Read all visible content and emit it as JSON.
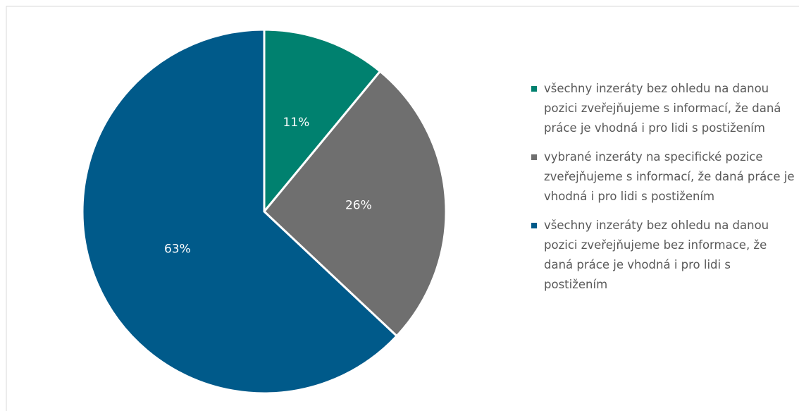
{
  "chart_data": {
    "type": "pie",
    "categories": [
      "všechny inzeráty bez ohledu na danou pozici zveřejňujeme s informací, že daná práce je vhodná i pro lidi s postižením",
      "vybrané inzeráty na specifické pozice zveřejňujeme s informací, že daná práce je vhodná i pro lidi s postižením",
      "všechny inzeráty bez ohledu na danou pozici zveřejňujeme bez informace, že daná práce je vhodná i pro lidi s postižením"
    ],
    "values": [
      11,
      26,
      63
    ],
    "value_labels": [
      "11%",
      "26%",
      "63%"
    ],
    "colors": [
      "#00816f",
      "#6f6f6f",
      "#005a8a"
    ],
    "legend": "right"
  }
}
